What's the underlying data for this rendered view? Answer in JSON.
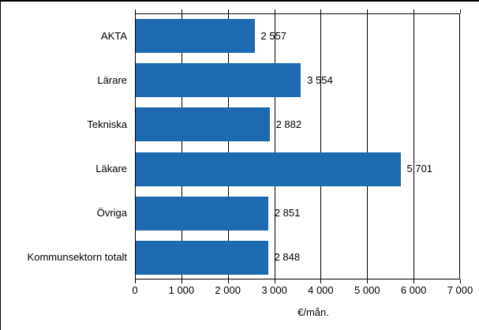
{
  "chart_data": {
    "type": "bar",
    "orientation": "horizontal",
    "title": "",
    "categories": [
      "AKTA",
      "Lärare",
      "Tekniska",
      "Läkare",
      "Övriga",
      "Kommunsektorn totalt"
    ],
    "values": [
      2557,
      3554,
      2882,
      5701,
      2851,
      2848
    ],
    "value_labels": [
      "2 557",
      "3 554",
      "2 882",
      "5 701",
      "2 851",
      "2 848"
    ],
    "xlabel": "€/mån.",
    "xlim": [
      0,
      7000
    ],
    "xticks": [
      0,
      1000,
      2000,
      3000,
      4000,
      5000,
      6000,
      7000
    ],
    "xtick_labels": [
      "0",
      "1 000",
      "2 000",
      "3 000",
      "4 000",
      "5 000",
      "6 000",
      "7 000"
    ],
    "grid": true,
    "legend": false,
    "bar_color": "#1e6ab0",
    "axis_color": "#000000",
    "text_color": "#000000"
  }
}
